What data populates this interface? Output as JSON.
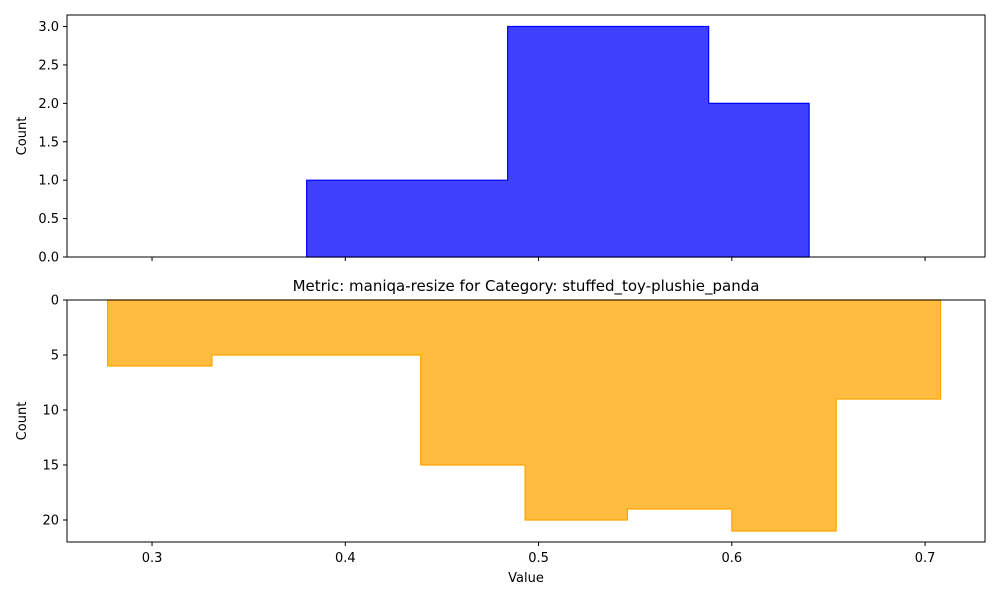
{
  "chart_data": [
    {
      "type": "histogram",
      "histtype": "stepfilled",
      "color": "#0000ff",
      "alpha": 0.75,
      "title": "",
      "xlabel": "",
      "ylabel": "Count",
      "xlim": [
        0.256,
        0.731
      ],
      "ylim": [
        0,
        3.15
      ],
      "y_inverted": false,
      "yticks": [
        0.0,
        0.5,
        1.0,
        1.5,
        2.0,
        2.5,
        3.0
      ],
      "ytick_labels": [
        "0.0",
        "0.5",
        "1.0",
        "1.5",
        "2.0",
        "2.5",
        "3.0"
      ],
      "xticks": [
        0.3,
        0.4,
        0.5,
        0.6,
        0.7
      ],
      "xtick_labels_visible": false,
      "bins": [
        {
          "x0": 0.38,
          "x1": 0.484,
          "count": 1
        },
        {
          "x0": 0.484,
          "x1": 0.588,
          "count": 3
        },
        {
          "x0": 0.588,
          "x1": 0.64,
          "count": 2
        }
      ]
    },
    {
      "type": "histogram",
      "histtype": "stepfilled",
      "color": "#ffa500",
      "alpha": 0.75,
      "title": "Metric: maniqa-resize for Category: stuffed_toy-plushie_panda",
      "xlabel": "Value",
      "ylabel": "Count",
      "xlim": [
        0.256,
        0.731
      ],
      "ylim": [
        22,
        0
      ],
      "y_inverted": true,
      "yticks": [
        0,
        5,
        10,
        15,
        20
      ],
      "ytick_labels": [
        "0",
        "5",
        "10",
        "15",
        "20"
      ],
      "xticks": [
        0.3,
        0.4,
        0.5,
        0.6,
        0.7
      ],
      "xtick_labels": [
        "0.3",
        "0.4",
        "0.5",
        "0.6",
        "0.7"
      ],
      "bins": [
        {
          "x0": 0.277,
          "x1": 0.331,
          "count": 6
        },
        {
          "x0": 0.331,
          "x1": 0.439,
          "count": 5
        },
        {
          "x0": 0.439,
          "x1": 0.493,
          "count": 15
        },
        {
          "x0": 0.493,
          "x1": 0.546,
          "count": 20
        },
        {
          "x0": 0.546,
          "x1": 0.6,
          "count": 19
        },
        {
          "x0": 0.6,
          "x1": 0.654,
          "count": 21
        },
        {
          "x0": 0.654,
          "x1": 0.708,
          "count": 9
        }
      ]
    }
  ]
}
